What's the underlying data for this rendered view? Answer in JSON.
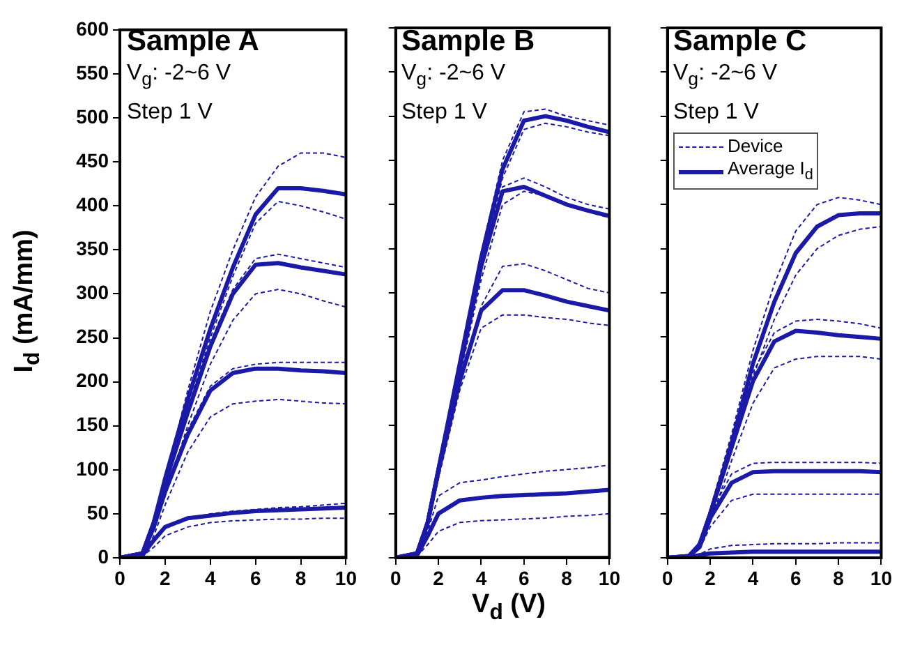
{
  "chart_data": [
    {
      "type": "line",
      "title": "Sample A",
      "annotations": [
        "V$_{g}$: -2~6 V",
        "Step 1 V"
      ],
      "ylabel": "I$_{d}$ (mA/mm)",
      "x": [
        0,
        1,
        1.5,
        2,
        3,
        4,
        5,
        6,
        7,
        8,
        9,
        10
      ],
      "xlim": [
        0,
        10
      ],
      "xticks": [
        0,
        2,
        4,
        6,
        8,
        10
      ],
      "ylim": [
        0,
        600
      ],
      "yticks": [
        0,
        50,
        100,
        150,
        200,
        250,
        300,
        350,
        400,
        450,
        500,
        550,
        600
      ],
      "grid": false,
      "marker": "none",
      "legend": false,
      "series": [
        {
          "color": "#1a1aa6",
          "line_style": "solid",
          "values": [
            0,
            5,
            40,
            90,
            180,
            260,
            330,
            390,
            420,
            420,
            417,
            413
          ]
        },
        {
          "color": "#1a1aa6",
          "line_style": "solid",
          "values": [
            0,
            5,
            40,
            85,
            165,
            240,
            300,
            333,
            335,
            330,
            326,
            322
          ]
        },
        {
          "color": "#1a1aa6",
          "line_style": "solid",
          "values": [
            0,
            5,
            35,
            75,
            140,
            190,
            210,
            215,
            215,
            213,
            212,
            210
          ]
        },
        {
          "color": "#1a1aa6",
          "line_style": "solid",
          "values": [
            0,
            3,
            20,
            35,
            45,
            48,
            51,
            53,
            54,
            55,
            56,
            57
          ]
        },
        {
          "color": "#1a1aa6",
          "line_style": "solid",
          "values": [
            0,
            0,
            0,
            0,
            0,
            0,
            0,
            0,
            0,
            0,
            0,
            0
          ]
        },
        {
          "color": "#1a1aa6",
          "line_style": "dashed",
          "values": [
            0,
            5,
            40,
            90,
            190,
            280,
            350,
            410,
            445,
            460,
            460,
            455
          ]
        },
        {
          "color": "#1a1aa6",
          "line_style": "dashed",
          "values": [
            0,
            5,
            35,
            80,
            170,
            250,
            320,
            380,
            405,
            400,
            393,
            385
          ]
        },
        {
          "color": "#1a1aa6",
          "line_style": "dashed",
          "values": [
            0,
            5,
            40,
            88,
            170,
            245,
            305,
            340,
            345,
            340,
            335,
            330
          ]
        },
        {
          "color": "#1a1aa6",
          "line_style": "dashed",
          "values": [
            0,
            5,
            30,
            70,
            150,
            220,
            270,
            300,
            305,
            300,
            292,
            285
          ]
        },
        {
          "color": "#1a1aa6",
          "line_style": "dashed",
          "values": [
            0,
            5,
            35,
            78,
            145,
            195,
            215,
            220,
            222,
            222,
            222,
            222
          ]
        },
        {
          "color": "#1a1aa6",
          "line_style": "dashed",
          "values": [
            0,
            3,
            25,
            60,
            120,
            160,
            175,
            178,
            180,
            178,
            176,
            175
          ]
        },
        {
          "color": "#1a1aa6",
          "line_style": "dashed",
          "values": [
            0,
            3,
            20,
            35,
            45,
            50,
            53,
            55,
            57,
            58,
            60,
            62
          ]
        },
        {
          "color": "#1a1aa6",
          "line_style": "dashed",
          "values": [
            0,
            2,
            12,
            25,
            35,
            40,
            42,
            43,
            44,
            44,
            45,
            45
          ]
        }
      ]
    },
    {
      "type": "line",
      "title": "Sample B",
      "annotations": [
        "V$_{g}$: -2~6 V",
        "Step 1 V"
      ],
      "xlabel": "V$_{d}$ (V)",
      "x": [
        0,
        1,
        1.5,
        2,
        3,
        4,
        5,
        6,
        7,
        8,
        9,
        10
      ],
      "xlim": [
        0,
        10
      ],
      "xticks": [
        0,
        2,
        4,
        6,
        8,
        10
      ],
      "ylim": [
        0,
        600
      ],
      "yticks": [
        0,
        50,
        100,
        150,
        200,
        250,
        300,
        350,
        400,
        450,
        500,
        550,
        600
      ],
      "tick_labels": "x",
      "grid": false,
      "marker": "none",
      "legend": false,
      "series": [
        {
          "color": "#1a1aa6",
          "line_style": "solid",
          "values": [
            0,
            5,
            40,
            100,
            220,
            340,
            440,
            495,
            500,
            495,
            488,
            482
          ]
        },
        {
          "color": "#1a1aa6",
          "line_style": "solid",
          "values": [
            0,
            5,
            40,
            100,
            215,
            330,
            415,
            420,
            410,
            400,
            393,
            387
          ]
        },
        {
          "color": "#1a1aa6",
          "line_style": "solid",
          "values": [
            0,
            5,
            40,
            98,
            200,
            280,
            303,
            303,
            297,
            290,
            285,
            280
          ]
        },
        {
          "color": "#1a1aa6",
          "line_style": "solid",
          "values": [
            0,
            3,
            25,
            50,
            65,
            68,
            70,
            71,
            72,
            73,
            75,
            77
          ]
        },
        {
          "color": "#1a1aa6",
          "line_style": "solid",
          "values": [
            0,
            0,
            0,
            0,
            0,
            0,
            0,
            0,
            0,
            0,
            0,
            0
          ]
        },
        {
          "color": "#1a1aa6",
          "line_style": "dashed",
          "values": [
            0,
            5,
            40,
            100,
            225,
            345,
            450,
            505,
            508,
            500,
            495,
            490
          ]
        },
        {
          "color": "#1a1aa6",
          "line_style": "dashed",
          "values": [
            0,
            5,
            35,
            95,
            210,
            330,
            430,
            485,
            492,
            488,
            482,
            478
          ]
        },
        {
          "color": "#1a1aa6",
          "line_style": "dashed",
          "values": [
            0,
            5,
            38,
            100,
            215,
            330,
            420,
            430,
            420,
            408,
            400,
            395
          ]
        },
        {
          "color": "#1a1aa6",
          "line_style": "dashed",
          "values": [
            0,
            5,
            35,
            90,
            205,
            315,
            400,
            415,
            410,
            400,
            392,
            385
          ]
        },
        {
          "color": "#1a1aa6",
          "line_style": "dashed",
          "values": [
            0,
            5,
            35,
            95,
            200,
            285,
            330,
            333,
            325,
            315,
            305,
            300
          ]
        },
        {
          "color": "#1a1aa6",
          "line_style": "dashed",
          "values": [
            0,
            5,
            35,
            90,
            190,
            260,
            275,
            275,
            272,
            270,
            266,
            263
          ]
        },
        {
          "color": "#1a1aa6",
          "line_style": "dashed",
          "values": [
            0,
            5,
            30,
            70,
            85,
            88,
            92,
            95,
            98,
            100,
            102,
            105
          ]
        },
        {
          "color": "#1a1aa6",
          "line_style": "dashed",
          "values": [
            0,
            2,
            15,
            30,
            40,
            42,
            43,
            44,
            45,
            47,
            48,
            50
          ]
        }
      ]
    },
    {
      "type": "line",
      "title": "Sample C",
      "annotations": [
        "V$_{g}$: -2~6 V",
        "Step 1 V"
      ],
      "x": [
        0,
        1,
        1.5,
        2,
        3,
        4,
        5,
        6,
        7,
        8,
        9,
        10
      ],
      "xlim": [
        0,
        10
      ],
      "xticks": [
        0,
        2,
        4,
        6,
        8,
        10
      ],
      "ylim": [
        0,
        600
      ],
      "yticks": [
        0,
        50,
        100,
        150,
        200,
        250,
        300,
        350,
        400,
        450,
        500,
        550,
        600
      ],
      "tick_labels": "x",
      "grid": false,
      "marker": "none",
      "legend": "top left",
      "series": [
        {
          "name": "Average I$_{d}$",
          "color": "#1a1aa6",
          "line_style": "solid",
          "values": [
            0,
            2,
            15,
            50,
            130,
            220,
            290,
            345,
            375,
            388,
            390,
            390
          ]
        },
        {
          "color": "#1a1aa6",
          "line_style": "solid",
          "values": [
            0,
            2,
            15,
            50,
            125,
            200,
            245,
            257,
            255,
            252,
            250,
            248
          ]
        },
        {
          "color": "#1a1aa6",
          "line_style": "solid",
          "values": [
            0,
            2,
            12,
            45,
            85,
            97,
            98,
            98,
            98,
            98,
            98,
            97
          ]
        },
        {
          "color": "#1a1aa6",
          "line_style": "solid",
          "values": [
            0,
            1,
            3,
            5,
            6,
            7,
            7,
            7,
            7,
            7,
            7,
            7
          ]
        },
        {
          "name": "Device",
          "color": "#1a1aa6",
          "line_style": "dashed",
          "values": [
            0,
            2,
            18,
            55,
            140,
            235,
            310,
            370,
            400,
            408,
            405,
            400
          ]
        },
        {
          "color": "#1a1aa6",
          "line_style": "dashed",
          "values": [
            0,
            2,
            12,
            45,
            120,
            205,
            270,
            320,
            350,
            365,
            372,
            375
          ]
        },
        {
          "color": "#1a1aa6",
          "line_style": "dashed",
          "values": [
            0,
            2,
            18,
            55,
            130,
            210,
            255,
            268,
            270,
            268,
            265,
            260
          ]
        },
        {
          "color": "#1a1aa6",
          "line_style": "dashed",
          "values": [
            0,
            2,
            12,
            40,
            110,
            175,
            215,
            225,
            228,
            228,
            228,
            225
          ]
        },
        {
          "color": "#1a1aa6",
          "line_style": "dashed",
          "values": [
            0,
            2,
            15,
            50,
            95,
            107,
            108,
            108,
            108,
            108,
            108,
            107
          ]
        },
        {
          "color": "#1a1aa6",
          "line_style": "dashed",
          "values": [
            0,
            2,
            10,
            35,
            65,
            72,
            72,
            72,
            72,
            72,
            72,
            72
          ]
        },
        {
          "color": "#1a1aa6",
          "line_style": "dashed",
          "values": [
            0,
            1,
            4,
            10,
            14,
            15,
            16,
            16,
            16,
            17,
            17,
            17
          ]
        }
      ]
    }
  ]
}
